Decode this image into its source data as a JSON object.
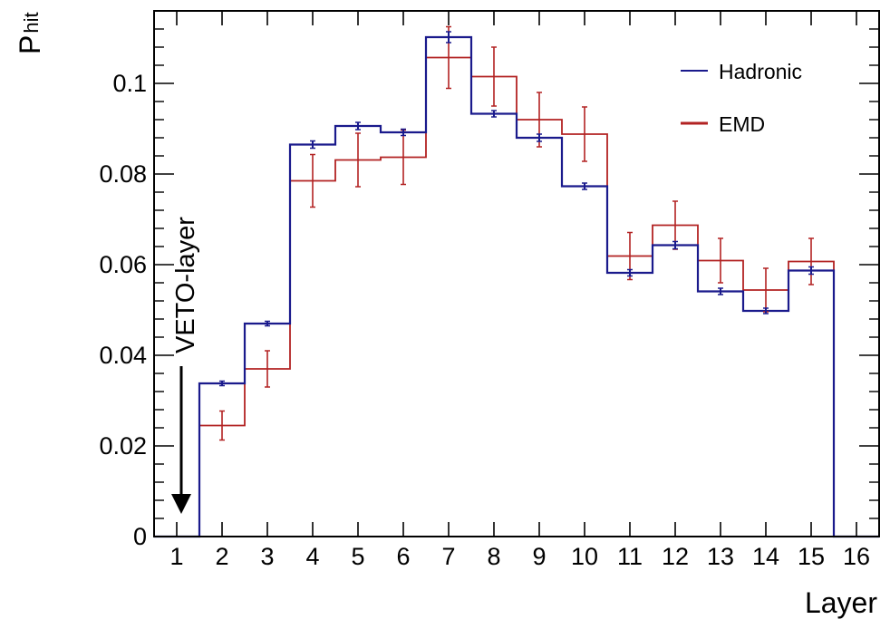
{
  "chart_data": {
    "type": "histogram",
    "xlabel": "Layer",
    "ylabel_main": "P",
    "ylabel_sub": "hit",
    "xlim": [
      0.5,
      16.5
    ],
    "ylim": [
      0,
      0.116
    ],
    "x_ticks": [
      1,
      2,
      3,
      4,
      5,
      6,
      7,
      8,
      9,
      10,
      11,
      12,
      13,
      14,
      15,
      16
    ],
    "y_ticks": [
      0,
      0.02,
      0.04,
      0.06,
      0.08,
      0.1
    ],
    "y_tick_labels": [
      "0",
      "0.02",
      "0.04",
      "0.06",
      "0.08",
      "0.1"
    ],
    "grid": false,
    "legend_position": "top-right",
    "annotation": {
      "text": "VETO-layer",
      "x_layer": 1.1,
      "arrow_to_y": 0.005
    },
    "series": [
      {
        "name": "Hadronic",
        "color": "#1a1a8c",
        "values": [
          0,
          0.0338,
          0.047,
          0.0865,
          0.0906,
          0.0892,
          0.1102,
          0.0933,
          0.088,
          0.0773,
          0.0582,
          0.0643,
          0.0541,
          0.0498,
          0.0587,
          0
        ],
        "errors": [
          0,
          0.0005,
          0.0005,
          0.0008,
          0.0008,
          0.0007,
          0.0012,
          0.0007,
          0.0008,
          0.0007,
          0.0007,
          0.0008,
          0.0007,
          0.0006,
          0.0008,
          0
        ]
      },
      {
        "name": "EMD",
        "color": "#b22222",
        "values": [
          0,
          0.0245,
          0.037,
          0.0785,
          0.0831,
          0.0837,
          0.1057,
          0.1015,
          0.092,
          0.0888,
          0.0619,
          0.0687,
          0.0609,
          0.0544,
          0.0607,
          0
        ],
        "errors": [
          0,
          0.0032,
          0.004,
          0.0058,
          0.0059,
          0.006,
          0.0068,
          0.0065,
          0.006,
          0.006,
          0.0052,
          0.0053,
          0.0049,
          0.0048,
          0.0051,
          0
        ]
      }
    ]
  }
}
